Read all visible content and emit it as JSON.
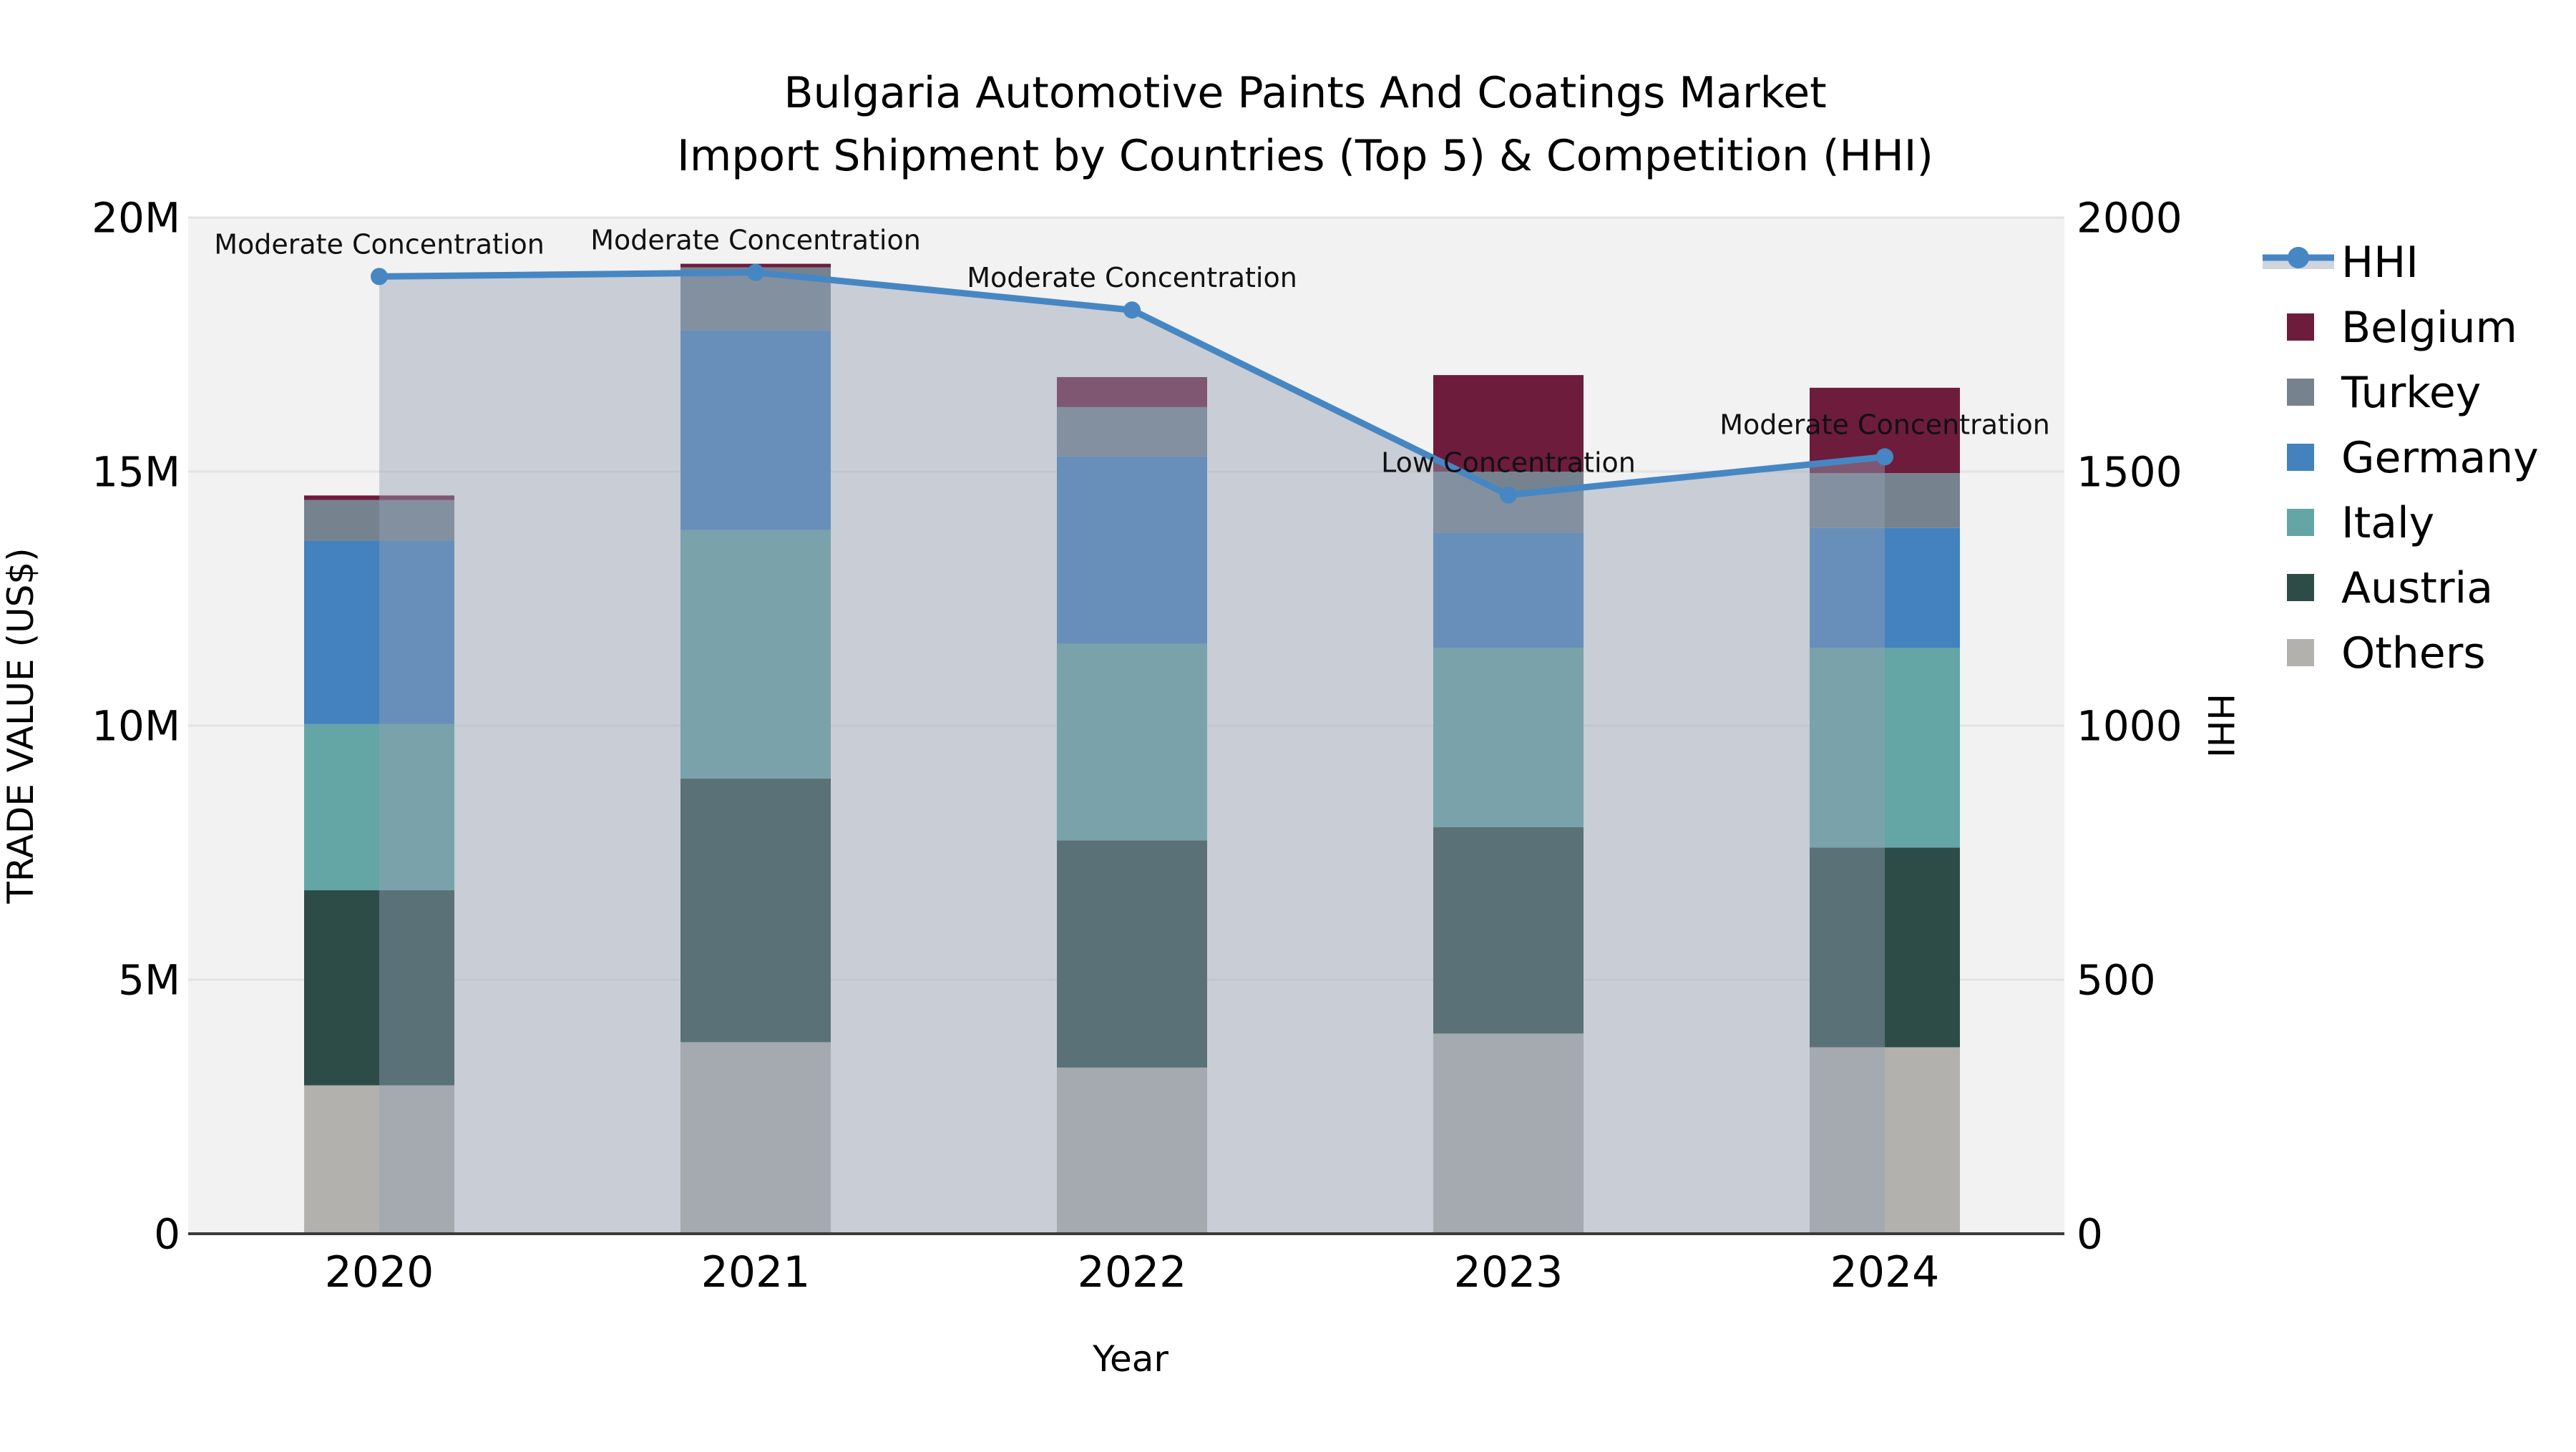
{
  "title": {
    "line1": "Bulgaria Automotive Paints And Coatings Market",
    "line2": "Import Shipment by Countries (Top 5) & Competition (HHI)"
  },
  "axes": {
    "left_title": "TRADE VALUE (US$)",
    "right_title": "HHI",
    "bottom_title": "Year"
  },
  "legend": {
    "position": "right-outside",
    "items": [
      {
        "label": "HHI",
        "type": "line-marker",
        "color": "#4687c3"
      },
      {
        "label": "Belgium",
        "type": "patch",
        "color": "#6e1c3c"
      },
      {
        "label": "Turkey",
        "type": "patch",
        "color": "#76838f"
      },
      {
        "label": "Germany",
        "type": "patch",
        "color": "#4382bf"
      },
      {
        "label": "Italy",
        "type": "patch",
        "color": "#64a5a5"
      },
      {
        "label": "Austria",
        "type": "patch",
        "color": "#2d4c48"
      },
      {
        "label": "Others",
        "type": "patch",
        "color": "#b2b1ae"
      }
    ]
  },
  "chart_data": {
    "type": "stacked-bar+line",
    "title": "Bulgaria Automotive Paints And Coatings Market — Import Shipment by Countries (Top 5) & Competition (HHI)",
    "categories": [
      "2020",
      "2021",
      "2022",
      "2023",
      "2024"
    ],
    "xlabel": "Year",
    "ylabel_left": "TRADE VALUE (US$)",
    "ylabel_right": "HHI",
    "ylim_left_millions": [
      0,
      20
    ],
    "ylim_right": [
      0,
      2000
    ],
    "grid": true,
    "plot_background": "#f2f2f2",
    "gridline_color": "#e3e3e3",
    "axisline_color": "#3a3a3a",
    "yticks_left": {
      "values": [
        0,
        5,
        10,
        15,
        20
      ],
      "labels": [
        "0",
        "5M",
        "10M",
        "15M",
        "20M"
      ]
    },
    "yticks_right": {
      "values": [
        0,
        500,
        1000,
        1500,
        2000
      ],
      "labels": [
        "0",
        "500",
        "1000",
        "1500",
        "2000"
      ]
    },
    "stack_order_bottom_to_top": [
      "Others",
      "Austria",
      "Italy",
      "Germany",
      "Turkey",
      "Belgium"
    ],
    "series": [
      {
        "name": "Belgium",
        "color": "#6e1c3c",
        "values_millions": [
          0.09,
          0.07,
          0.59,
          1.9,
          1.68
        ]
      },
      {
        "name": "Turkey",
        "color": "#76838f",
        "values_millions": [
          0.8,
          1.24,
          0.97,
          1.2,
          1.08
        ]
      },
      {
        "name": "Germany",
        "color": "#4382bf",
        "values_millions": [
          3.61,
          3.93,
          3.69,
          2.27,
          2.36
        ]
      },
      {
        "name": "Italy",
        "color": "#64a5a5",
        "values_millions": [
          3.27,
          4.89,
          3.87,
          3.53,
          3.93
        ]
      },
      {
        "name": "Austria",
        "color": "#2d4c48",
        "values_millions": [
          3.84,
          5.19,
          4.47,
          4.06,
          3.93
        ]
      },
      {
        "name": "Others",
        "color": "#b2b1ae",
        "values_millions": [
          2.92,
          3.77,
          3.27,
          3.94,
          3.67
        ]
      }
    ],
    "line_series": {
      "name": "HHI",
      "color": "#4687c3",
      "area_fill": "rgba(148,160,180,0.45)",
      "axis": "right",
      "values": [
        1884,
        1892,
        1818,
        1454,
        1529
      ]
    },
    "annotations": [
      {
        "category": "2020",
        "text": "Moderate Concentration"
      },
      {
        "category": "2021",
        "text": "Moderate Concentration"
      },
      {
        "category": "2022",
        "text": "Moderate Concentration"
      },
      {
        "category": "2023",
        "text": "Low Concentration"
      },
      {
        "category": "2024",
        "text": "Moderate Concentration"
      }
    ]
  }
}
